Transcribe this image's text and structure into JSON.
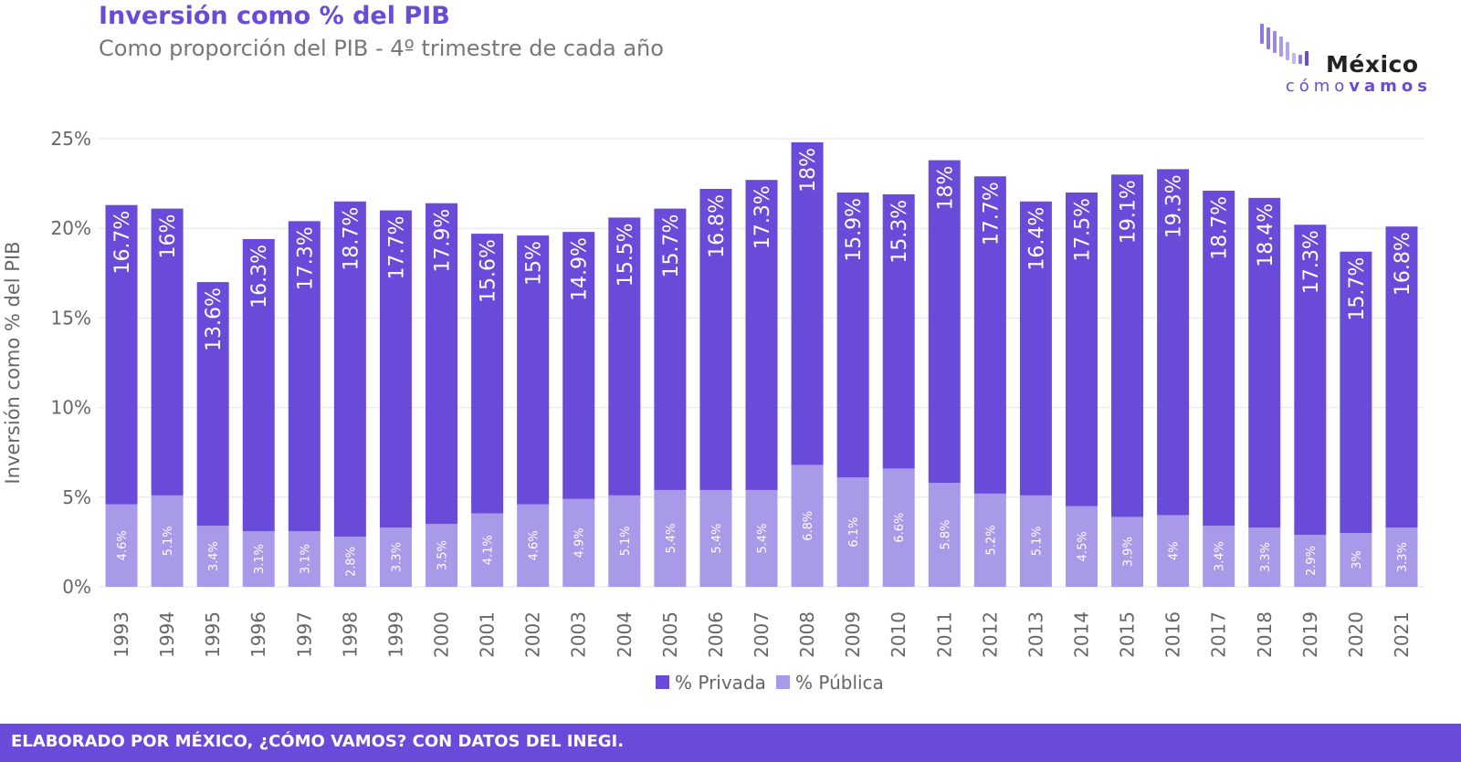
{
  "header": {
    "title": "Inversión como % del PIB",
    "subtitle": "Como proporción del PIB - 4º trimestre de cada año"
  },
  "logo": {
    "word1": "México",
    "word2a": "cómo",
    "word2b": "vamos"
  },
  "footer": {
    "text": "ELABORADO POR MÉXICO, ¿CÓMO VAMOS? CON DATOS DEL INEGI."
  },
  "colors": {
    "privada": "#6a4ad8",
    "publica": "#a99ae9",
    "accent": "#6a4ad8",
    "grid": "#e6e6e6",
    "axis_text": "#666666"
  },
  "chart_data": {
    "type": "bar",
    "stacked": true,
    "title": "Inversión como % del PIB",
    "subtitle": "Como proporción del PIB - 4º trimestre de cada año",
    "xlabel": "",
    "ylabel": "Inversión como % del PIB",
    "ylim": [
      0,
      25
    ],
    "yticks": [
      0,
      5,
      10,
      15,
      20,
      25
    ],
    "ytick_labels": [
      "0%",
      "5%",
      "10%",
      "15%",
      "20%",
      "25%"
    ],
    "legend_position": "bottom",
    "categories": [
      "1993",
      "1994",
      "1995",
      "1996",
      "1997",
      "1998",
      "1999",
      "2000",
      "2001",
      "2002",
      "2003",
      "2004",
      "2005",
      "2006",
      "2007",
      "2008",
      "2009",
      "2010",
      "2011",
      "2012",
      "2013",
      "2014",
      "2015",
      "2016",
      "2017",
      "2018",
      "2019",
      "2020",
      "2021"
    ],
    "series": [
      {
        "name": "% Pública",
        "values": [
          4.6,
          5.1,
          3.4,
          3.1,
          3.1,
          2.8,
          3.3,
          3.5,
          4.1,
          4.6,
          4.9,
          5.1,
          5.4,
          5.4,
          5.4,
          6.8,
          6.1,
          6.6,
          5.8,
          5.2,
          5.1,
          4.5,
          3.9,
          4.0,
          3.4,
          3.3,
          2.9,
          3.0,
          3.3
        ],
        "labels": [
          "4.6%",
          "5.1%",
          "3.4%",
          "3.1%",
          "3.1%",
          "2.8%",
          "3.3%",
          "3.5%",
          "4.1%",
          "4.6%",
          "4.9%",
          "5.1%",
          "5.4%",
          "5.4%",
          "5.4%",
          "6.8%",
          "6.1%",
          "6.6%",
          "5.8%",
          "5.2%",
          "5.1%",
          "4.5%",
          "3.9%",
          "4%",
          "3.4%",
          "3.3%",
          "2.9%",
          "3%",
          "3.3%"
        ]
      },
      {
        "name": "% Privada",
        "values": [
          16.7,
          16.0,
          13.6,
          16.3,
          17.3,
          18.7,
          17.7,
          17.9,
          15.6,
          15.0,
          14.9,
          15.5,
          15.7,
          16.8,
          17.3,
          18.0,
          15.9,
          15.3,
          18.0,
          17.7,
          16.4,
          17.5,
          19.1,
          19.3,
          18.7,
          18.4,
          17.3,
          15.7,
          16.8
        ],
        "labels": [
          "16.7%",
          "16%",
          "13.6%",
          "16.3%",
          "17.3%",
          "18.7%",
          "17.7%",
          "17.9%",
          "15.6%",
          "15%",
          "14.9%",
          "15.5%",
          "15.7%",
          "16.8%",
          "17.3%",
          "18%",
          "15.9%",
          "15.3%",
          "18%",
          "17.7%",
          "16.4%",
          "17.5%",
          "19.1%",
          "19.3%",
          "18.7%",
          "18.4%",
          "17.3%",
          "15.7%",
          "16.8%"
        ]
      }
    ],
    "legend": [
      "% Privada",
      "% Pública"
    ]
  }
}
